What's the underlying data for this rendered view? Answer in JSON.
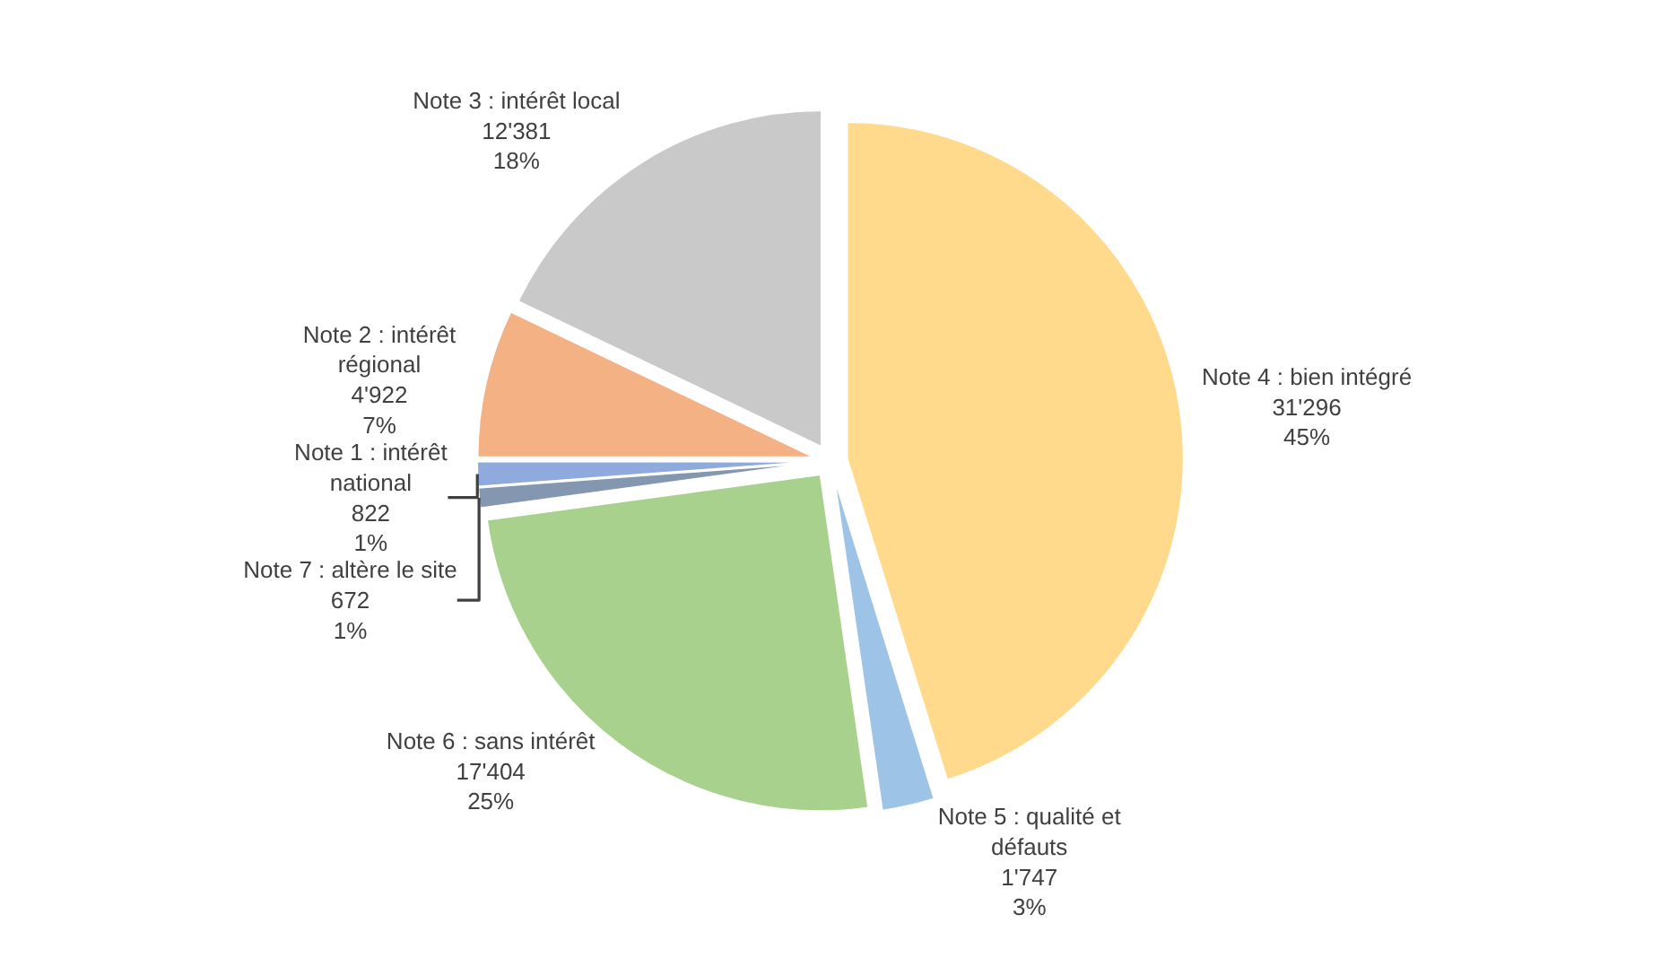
{
  "chart_data": {
    "type": "pie",
    "categories": [
      "Note 4 : bien intégré",
      "Note 5 : qualité et\ndéfauts",
      "Note 6 : sans intérêt",
      "Note 7 : altère le site",
      "Note 1 : intérêt\nnational",
      "Note 2 : intérêt\nrégional",
      "Note 3 : intérêt local"
    ],
    "values": [
      31296,
      1747,
      17404,
      672,
      822,
      4922,
      12381
    ],
    "value_labels": [
      "31'296\n45%",
      "1'747\n3%",
      "17'404\n25%",
      "672\n1%",
      "822\n1%",
      "4'922\n7%",
      "12'381\n18%"
    ],
    "colors": [
      "#ffd98c",
      "#9dc3e6",
      "#a9d18e",
      "#8497b0",
      "#8faadc",
      "#f4b183",
      "#c9c9c9"
    ],
    "legend": false
  }
}
